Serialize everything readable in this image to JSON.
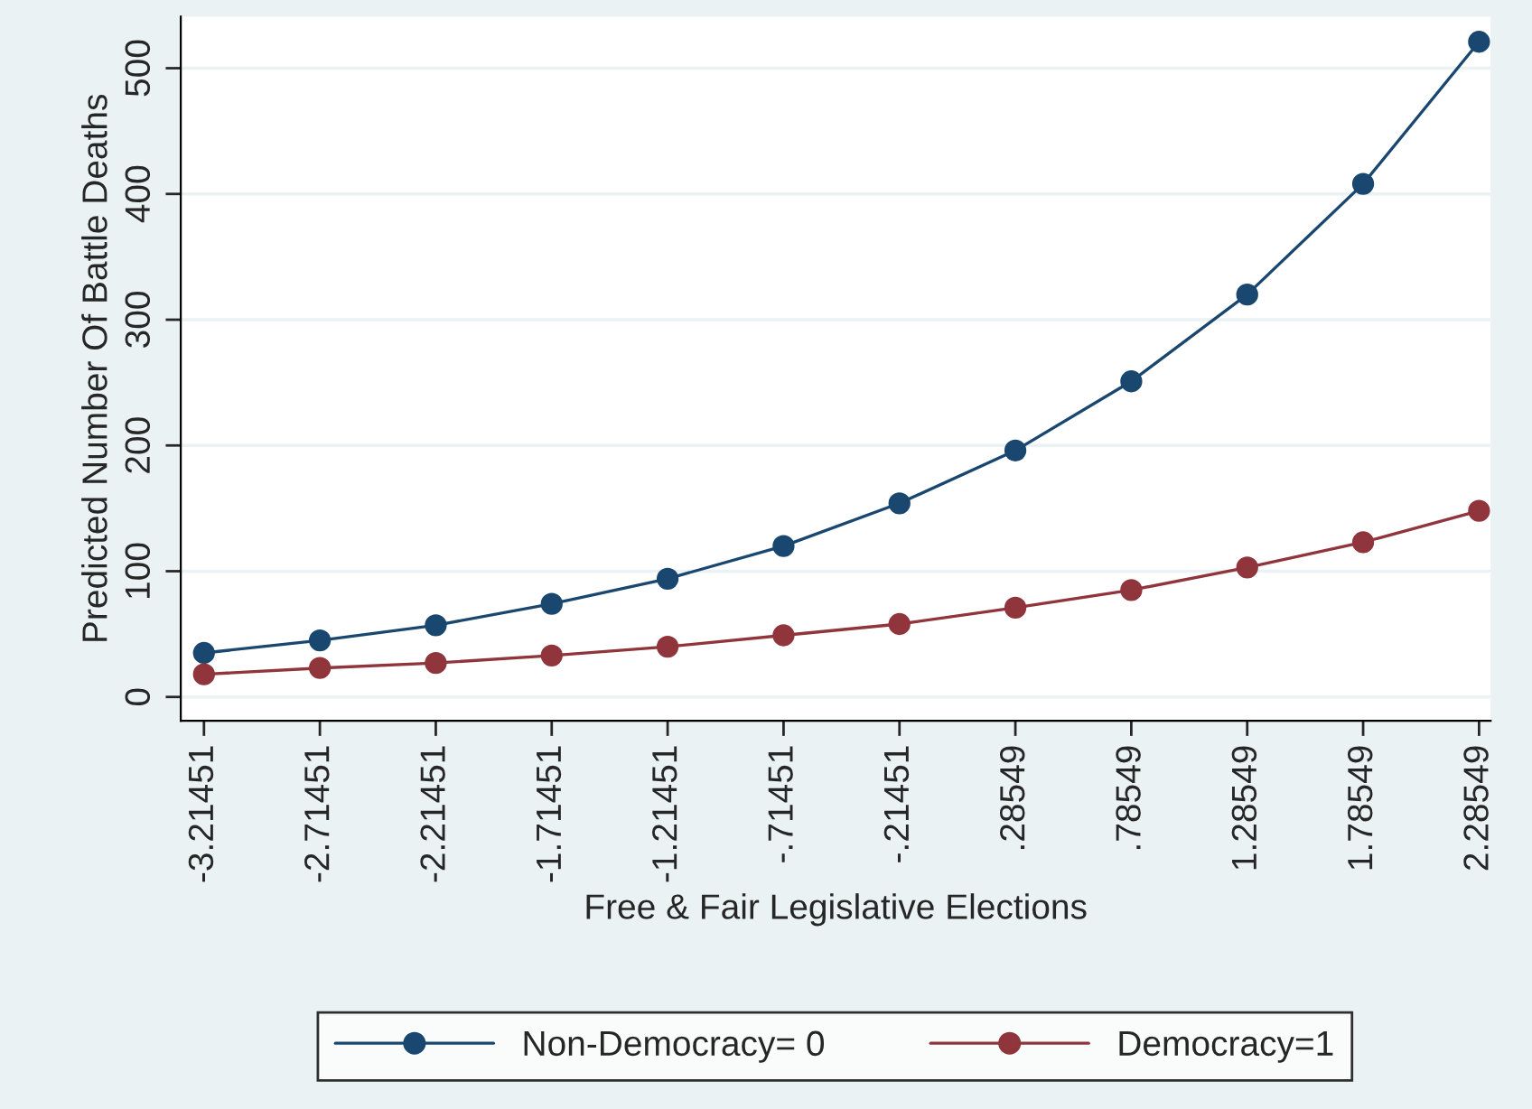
{
  "chart_data": {
    "type": "line",
    "xlabel": "Free & Fair Legislative Elections",
    "ylabel": "Predicted Number Of Battle Deaths",
    "categories": [
      "-3.21451",
      "-2.71451",
      "-2.21451",
      "-1.71451",
      "-1.21451",
      "-.71451",
      "-.21451",
      ".28549",
      ".78549",
      "1.28549",
      "1.78549",
      "2.28549"
    ],
    "series": [
      {
        "name": "Non-Democracy= 0",
        "color": "#1a476f",
        "values": [
          35,
          45,
          57,
          74,
          94,
          120,
          154,
          196,
          251,
          320,
          408,
          521
        ]
      },
      {
        "name": "Democracy=1",
        "color": "#90353b",
        "values": [
          18,
          23,
          27,
          33,
          40,
          49,
          58,
          71,
          85,
          103,
          123,
          148
        ]
      }
    ],
    "ylim": [
      -19,
      541
    ],
    "yticks": [
      0,
      100,
      200,
      300,
      400,
      500
    ],
    "grid": "y",
    "legend": "bottom",
    "marker": "circle",
    "line_style": "solid"
  }
}
